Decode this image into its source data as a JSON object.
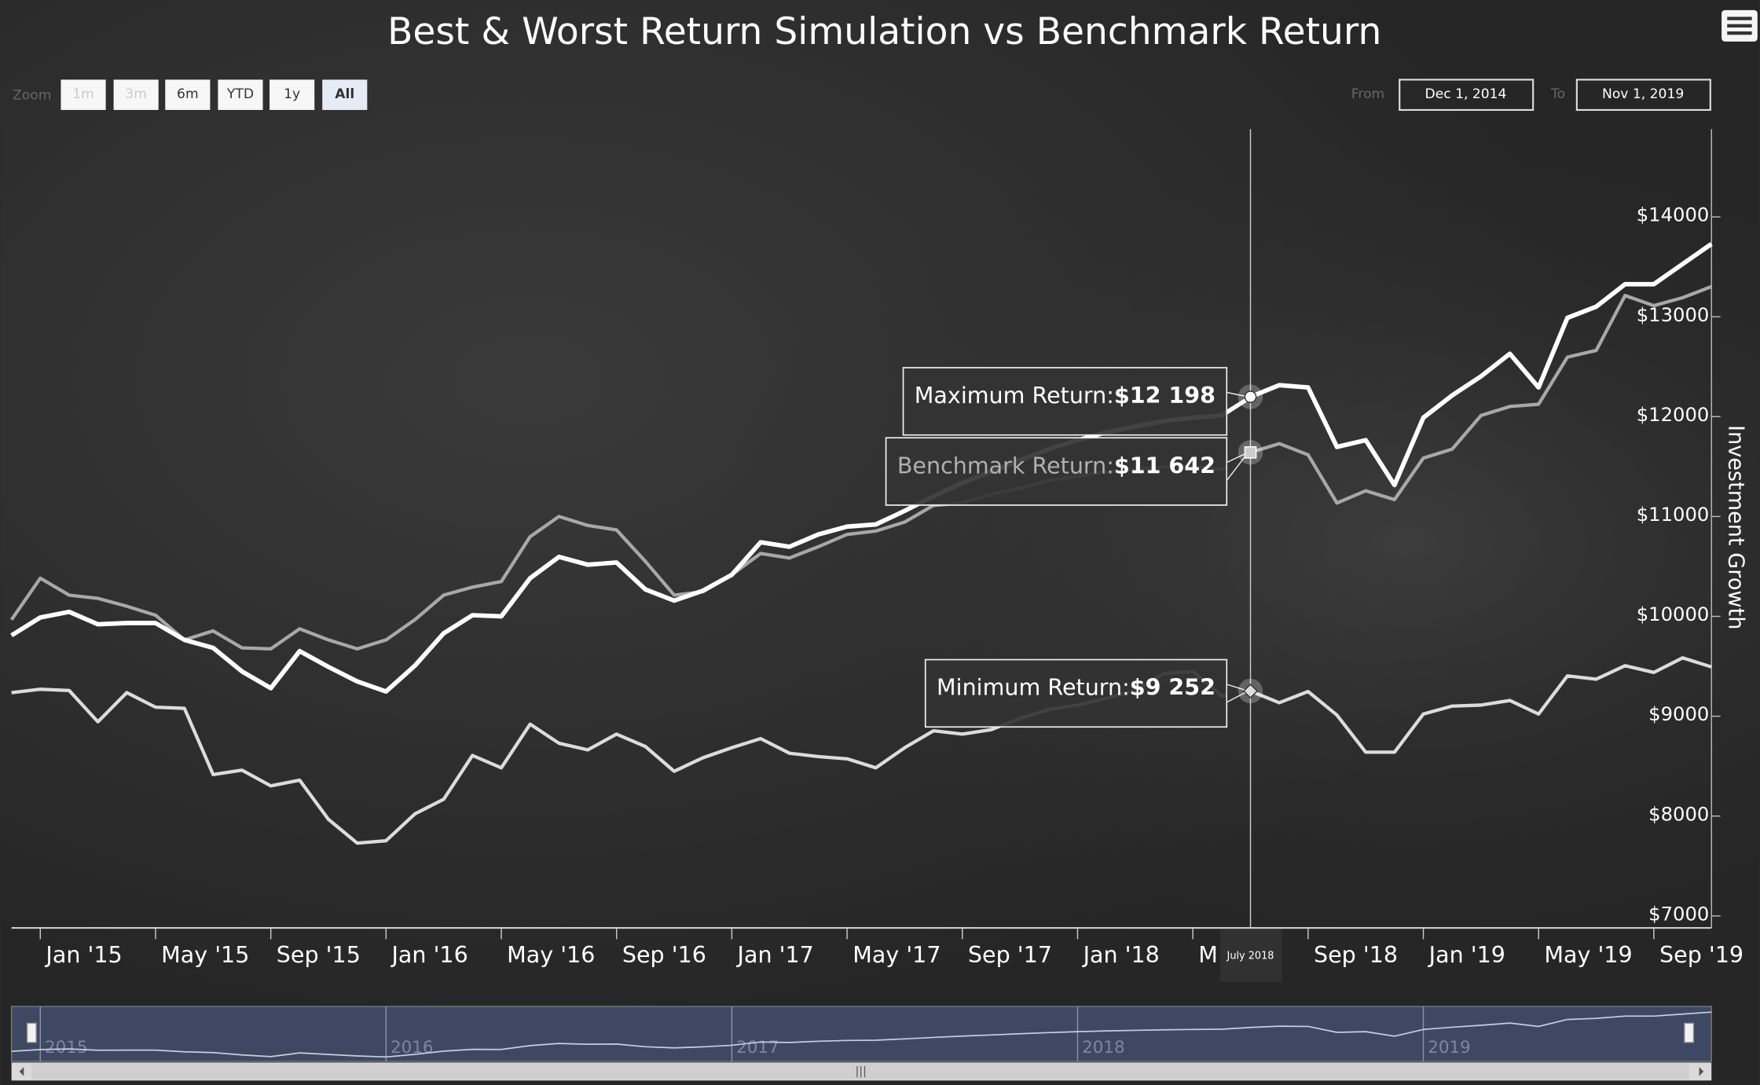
{
  "chart_data": {
    "type": "line",
    "title": "Best & Worst Return Simulation vs Benchmark Return",
    "y_axis_label": "Investment Growth",
    "x": [
      "2014-12",
      "2015-01",
      "2015-02",
      "2015-03",
      "2015-04",
      "2015-05",
      "2015-06",
      "2015-07",
      "2015-08",
      "2015-09",
      "2015-10",
      "2015-11",
      "2015-12",
      "2016-01",
      "2016-02",
      "2016-03",
      "2016-04",
      "2016-05",
      "2016-06",
      "2016-07",
      "2016-08",
      "2016-09",
      "2016-10",
      "2016-11",
      "2016-12",
      "2017-01",
      "2017-02",
      "2017-03",
      "2017-04",
      "2017-05",
      "2017-06",
      "2017-07",
      "2017-08",
      "2017-09",
      "2017-10",
      "2017-11",
      "2017-12",
      "2018-01",
      "2018-02",
      "2018-03",
      "2018-04",
      "2018-05",
      "2018-06",
      "2018-07",
      "2018-08",
      "2018-09",
      "2018-10",
      "2018-11",
      "2018-12",
      "2019-01",
      "2019-02",
      "2019-03",
      "2019-04",
      "2019-05",
      "2019-06",
      "2019-07",
      "2019-08",
      "2019-09",
      "2019-10",
      "2019-11"
    ],
    "series": [
      {
        "name": "Maximum Return",
        "color": "#ffffff",
        "width": 4,
        "values": [
          9809,
          9989,
          10045,
          9921,
          9933,
          9933,
          9764,
          9685,
          9449,
          9281,
          9652,
          9494,
          9348,
          9247,
          9506,
          9831,
          10011,
          10000,
          10382,
          10596,
          10517,
          10539,
          10270,
          10157,
          10258,
          10416,
          10742,
          10697,
          10820,
          10899,
          10921,
          11056,
          11202,
          11337,
          11449,
          11562,
          11674,
          11764,
          11843,
          11900,
          11955,
          11989,
          12011,
          12198,
          12315,
          12292,
          11697,
          11764,
          11315,
          11989,
          12213,
          12404,
          12629,
          12292,
          12989,
          13101,
          13326,
          13326,
          13528,
          13730
        ]
      },
      {
        "name": "Benchmark Return",
        "color": "#a8a8a8",
        "width": 3,
        "values": [
          9966,
          10382,
          10213,
          10180,
          10101,
          10011,
          9764,
          9854,
          9685,
          9674,
          9876,
          9764,
          9674,
          9764,
          9966,
          10213,
          10292,
          10348,
          10798,
          11000,
          10910,
          10865,
          10551,
          10213,
          10247,
          10416,
          10629,
          10584,
          10697,
          10820,
          10854,
          10944,
          11112,
          11135,
          11225,
          11281,
          11360,
          11400,
          11449,
          11470,
          11494,
          11500,
          11472,
          11642,
          11730,
          11618,
          11135,
          11258,
          11169,
          11584,
          11674,
          12011,
          12101,
          12124,
          12596,
          12663,
          13213,
          13112,
          13191,
          13303
        ]
      },
      {
        "name": "Minimum Return",
        "color": "#dcdcdc",
        "width": 3,
        "values": [
          9236,
          9270,
          9258,
          8944,
          9236,
          9090,
          9079,
          8416,
          8460,
          8303,
          8360,
          7966,
          7730,
          7753,
          8022,
          8169,
          8607,
          8483,
          8921,
          8730,
          8663,
          8820,
          8697,
          8449,
          8584,
          8685,
          8775,
          8629,
          8596,
          8573,
          8483,
          8685,
          8854,
          8820,
          8865,
          8978,
          9067,
          9112,
          9180,
          9258,
          9427,
          9449,
          9202,
          9252,
          9135,
          9247,
          9011,
          8640,
          8640,
          9022,
          9101,
          9112,
          9157,
          9022,
          9404,
          9371,
          9506,
          9438,
          9584,
          9494
        ]
      }
    ],
    "ylim": [
      6880,
      14880
    ],
    "yticks": [
      {
        "value": 7000,
        "label": "$7000"
      },
      {
        "value": 8000,
        "label": "$8000"
      },
      {
        "value": 9000,
        "label": "$9000"
      },
      {
        "value": 10000,
        "label": "$10000"
      },
      {
        "value": 11000,
        "label": "$11000"
      },
      {
        "value": 12000,
        "label": "$12000"
      },
      {
        "value": 13000,
        "label": "$13000"
      },
      {
        "value": 14000,
        "label": "$14000"
      }
    ],
    "xticks": [
      {
        "value": "2015-01",
        "label": "Jan '15"
      },
      {
        "value": "2015-05",
        "label": "May '15"
      },
      {
        "value": "2015-09",
        "label": "Sep '15"
      },
      {
        "value": "2016-01",
        "label": "Jan '16"
      },
      {
        "value": "2016-05",
        "label": "May '16"
      },
      {
        "value": "2016-09",
        "label": "Sep '16"
      },
      {
        "value": "2017-01",
        "label": "Jan '17"
      },
      {
        "value": "2017-05",
        "label": "May '17"
      },
      {
        "value": "2017-09",
        "label": "Sep '17"
      },
      {
        "value": "2018-01",
        "label": "Jan '18"
      },
      {
        "value": "2018-05",
        "label": "M"
      },
      {
        "value": "2018-09",
        "label": "Sep '18"
      },
      {
        "value": "2019-01",
        "label": "Jan '19"
      },
      {
        "value": "2019-05",
        "label": "May '19"
      },
      {
        "value": "2019-09",
        "label": "Sep '19"
      }
    ],
    "tooltip": {
      "x": "2018-07",
      "x_label": "July 2018",
      "entries": [
        {
          "label": "Maximum Return:",
          "value_label": "$12 198"
        },
        {
          "label": "Benchmark Return:",
          "value_label": "$11 642"
        },
        {
          "label": "Minimum Return:",
          "value_label": "$9 252"
        }
      ]
    },
    "navigator": {
      "ticks": [
        {
          "value": "2015-01",
          "label": "2015"
        },
        {
          "value": "2016-01",
          "label": "2016"
        },
        {
          "value": "2017-01",
          "label": "2017"
        },
        {
          "value": "2018-01",
          "label": "2018"
        },
        {
          "value": "2019-01",
          "label": "2019"
        }
      ]
    }
  },
  "ui": {
    "zoom": {
      "label": "Zoom",
      "buttons": [
        "1m",
        "3m",
        "6m",
        "YTD",
        "1y",
        "All"
      ],
      "selected": "All",
      "disabled": [
        "1m",
        "3m"
      ]
    },
    "range": {
      "from_label": "From",
      "from": "Dec 1, 2014",
      "to_label": "To",
      "to": "Nov 1, 2019"
    }
  }
}
